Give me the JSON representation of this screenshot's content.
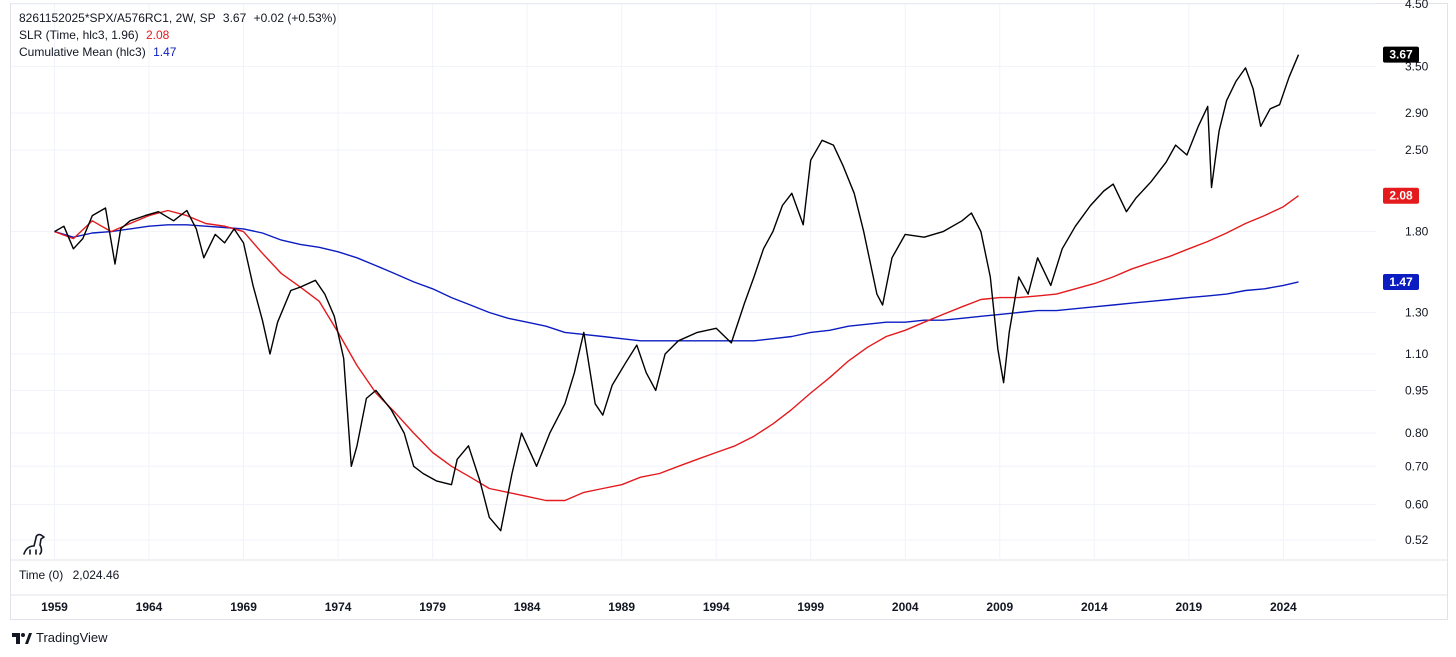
{
  "header": {
    "symbol": "8261152025*SPX/A576RC1, 2W, SP",
    "last": "3.67",
    "change": "+0.02 (+0.53%)"
  },
  "indicators": [
    {
      "label": "SLR (Time, hlc3, 1.96)",
      "value": "2.08",
      "color": "#e41a1c"
    },
    {
      "label": "Cumulative Mean (hlc3)",
      "value": "1.47",
      "color": "#0b1cc1"
    }
  ],
  "time_pane": {
    "label": "Time (0)",
    "value": "2,024.46"
  },
  "footer": {
    "brand": "TradingView"
  },
  "colors": {
    "price": "#000000",
    "slr": "#e41a1c",
    "mean": "#0b1cc1",
    "grid": "#f0f3fa"
  },
  "chart_data": {
    "type": "line",
    "y_scale": "log",
    "ylim": [
      0.48,
      4.5
    ],
    "xlim": [
      1956.7,
      2028.9
    ],
    "y_ticks": [
      "4.50",
      "3.50",
      "2.90",
      "2.50",
      "1.80",
      "1.30",
      "1.10",
      "0.95",
      "0.80",
      "0.70",
      "0.60",
      "0.52"
    ],
    "x_ticks": [
      "1959",
      "1964",
      "1969",
      "1974",
      "1979",
      "1984",
      "1989",
      "1994",
      "1999",
      "2004",
      "2009",
      "2014",
      "2019",
      "2024"
    ],
    "price_labels": [
      {
        "value": 3.67,
        "text": "3.67",
        "color": "#000000"
      },
      {
        "value": 2.08,
        "text": "2.08",
        "color": "#e41a1c"
      },
      {
        "value": 1.47,
        "text": "1.47",
        "color": "#0b1cc1"
      }
    ],
    "series": [
      {
        "name": "8261152025*SPX/A576RC1",
        "color": "#000000",
        "x": [
          1959.0,
          1959.5,
          1960.0,
          1960.5,
          1961.0,
          1961.7,
          1962.2,
          1962.5,
          1963.0,
          1963.8,
          1964.5,
          1965.3,
          1966.0,
          1966.5,
          1966.9,
          1967.5,
          1968.0,
          1968.5,
          1969.0,
          1969.5,
          1970.0,
          1970.4,
          1970.8,
          1971.5,
          1972.0,
          1972.8,
          1973.3,
          1973.8,
          1974.3,
          1974.7,
          1975.0,
          1975.5,
          1976.0,
          1976.8,
          1977.5,
          1978.0,
          1978.5,
          1979.2,
          1980.0,
          1980.3,
          1980.9,
          1981.5,
          1982.0,
          1982.6,
          1983.2,
          1983.7,
          1984.5,
          1985.2,
          1986.0,
          1986.5,
          1987.0,
          1987.6,
          1988.0,
          1988.5,
          1989.2,
          1989.8,
          1990.3,
          1990.8,
          1991.3,
          1992.0,
          1993.0,
          1994.0,
          1994.8,
          1995.5,
          1996.0,
          1996.5,
          1997.0,
          1997.5,
          1998.0,
          1998.6,
          1999.0,
          1999.6,
          2000.2,
          2000.7,
          2001.3,
          2001.8,
          2002.5,
          2002.8,
          2003.3,
          2004.0,
          2005.0,
          2006.0,
          2007.0,
          2007.5,
          2008.0,
          2008.5,
          2008.9,
          2009.2,
          2009.5,
          2010.0,
          2010.5,
          2011.0,
          2011.7,
          2012.3,
          2013.0,
          2013.8,
          2014.5,
          2015.0,
          2015.7,
          2016.2,
          2017.0,
          2017.8,
          2018.3,
          2018.9,
          2019.5,
          2020.0,
          2020.2,
          2020.6,
          2021.0,
          2021.5,
          2022.0,
          2022.4,
          2022.8,
          2023.3,
          2023.8,
          2024.3,
          2024.8
        ],
        "y": [
          1.8,
          1.84,
          1.68,
          1.75,
          1.92,
          1.98,
          1.58,
          1.82,
          1.88,
          1.92,
          1.95,
          1.88,
          1.96,
          1.82,
          1.62,
          1.78,
          1.72,
          1.82,
          1.72,
          1.45,
          1.26,
          1.1,
          1.25,
          1.42,
          1.44,
          1.48,
          1.4,
          1.28,
          1.08,
          0.7,
          0.76,
          0.92,
          0.95,
          0.88,
          0.8,
          0.7,
          0.68,
          0.66,
          0.65,
          0.72,
          0.76,
          0.66,
          0.57,
          0.54,
          0.68,
          0.8,
          0.7,
          0.8,
          0.9,
          1.02,
          1.2,
          0.9,
          0.86,
          0.97,
          1.06,
          1.14,
          1.02,
          0.95,
          1.1,
          1.16,
          1.2,
          1.22,
          1.15,
          1.35,
          1.5,
          1.68,
          1.8,
          2.0,
          2.1,
          1.85,
          2.4,
          2.6,
          2.55,
          2.35,
          2.1,
          1.8,
          1.4,
          1.34,
          1.62,
          1.78,
          1.76,
          1.8,
          1.88,
          1.94,
          1.8,
          1.5,
          1.12,
          0.98,
          1.2,
          1.5,
          1.4,
          1.62,
          1.45,
          1.68,
          1.84,
          2.0,
          2.12,
          2.18,
          1.95,
          2.06,
          2.2,
          2.38,
          2.55,
          2.45,
          2.75,
          2.98,
          2.15,
          2.7,
          3.05,
          3.3,
          3.48,
          3.2,
          2.75,
          2.95,
          3.0,
          3.35,
          3.67
        ]
      },
      {
        "name": "SLR (Time, hlc3, 1.96)",
        "color": "#e41a1c",
        "x": [
          1959.0,
          1960.0,
          1961.0,
          1962.0,
          1963.0,
          1964.0,
          1965.0,
          1966.0,
          1967.0,
          1968.0,
          1969.0,
          1970.0,
          1971.0,
          1972.0,
          1973.0,
          1974.0,
          1975.0,
          1976.0,
          1977.0,
          1978.0,
          1979.0,
          1980.0,
          1981.0,
          1982.0,
          1983.0,
          1984.0,
          1985.0,
          1986.0,
          1987.0,
          1988.0,
          1989.0,
          1990.0,
          1991.0,
          1992.0,
          1993.0,
          1994.0,
          1995.0,
          1996.0,
          1997.0,
          1998.0,
          1999.0,
          2000.0,
          2001.0,
          2002.0,
          2003.0,
          2004.0,
          2005.0,
          2006.0,
          2007.0,
          2008.0,
          2009.0,
          2010.0,
          2011.0,
          2012.0,
          2013.0,
          2014.0,
          2015.0,
          2016.0,
          2017.0,
          2018.0,
          2019.0,
          2020.0,
          2021.0,
          2022.0,
          2023.0,
          2024.0,
          2024.8
        ],
        "y": [
          1.8,
          1.75,
          1.88,
          1.8,
          1.86,
          1.92,
          1.96,
          1.92,
          1.86,
          1.84,
          1.8,
          1.65,
          1.52,
          1.44,
          1.36,
          1.2,
          1.05,
          0.94,
          0.87,
          0.8,
          0.74,
          0.7,
          0.67,
          0.64,
          0.63,
          0.62,
          0.61,
          0.61,
          0.63,
          0.64,
          0.65,
          0.67,
          0.68,
          0.7,
          0.72,
          0.74,
          0.76,
          0.79,
          0.83,
          0.88,
          0.94,
          1.0,
          1.07,
          1.13,
          1.18,
          1.21,
          1.25,
          1.29,
          1.33,
          1.37,
          1.38,
          1.38,
          1.39,
          1.4,
          1.43,
          1.46,
          1.5,
          1.55,
          1.59,
          1.63,
          1.68,
          1.73,
          1.79,
          1.86,
          1.92,
          1.99,
          2.08
        ]
      },
      {
        "name": "Cumulative Mean (hlc3)",
        "color": "#0b1cc1",
        "x": [
          1959.0,
          1960.0,
          1961.0,
          1962.0,
          1963.0,
          1964.0,
          1965.0,
          1966.0,
          1967.0,
          1968.0,
          1969.0,
          1970.0,
          1971.0,
          1972.0,
          1973.0,
          1974.0,
          1975.0,
          1976.0,
          1977.0,
          1978.0,
          1979.0,
          1980.0,
          1981.0,
          1982.0,
          1983.0,
          1984.0,
          1985.0,
          1986.0,
          1987.0,
          1988.0,
          1989.0,
          1990.0,
          1991.0,
          1992.0,
          1993.0,
          1994.0,
          1995.0,
          1996.0,
          1997.0,
          1998.0,
          1999.0,
          2000.0,
          2001.0,
          2002.0,
          2003.0,
          2004.0,
          2005.0,
          2006.0,
          2007.0,
          2008.0,
          2009.0,
          2010.0,
          2011.0,
          2012.0,
          2013.0,
          2014.0,
          2015.0,
          2016.0,
          2017.0,
          2018.0,
          2019.0,
          2020.0,
          2021.0,
          2022.0,
          2023.0,
          2024.0,
          2024.8
        ],
        "y": [
          1.8,
          1.76,
          1.79,
          1.8,
          1.82,
          1.84,
          1.85,
          1.85,
          1.84,
          1.83,
          1.82,
          1.79,
          1.74,
          1.71,
          1.69,
          1.66,
          1.62,
          1.57,
          1.52,
          1.47,
          1.43,
          1.38,
          1.34,
          1.3,
          1.27,
          1.25,
          1.23,
          1.2,
          1.19,
          1.18,
          1.17,
          1.16,
          1.16,
          1.16,
          1.16,
          1.16,
          1.16,
          1.16,
          1.17,
          1.18,
          1.2,
          1.21,
          1.23,
          1.24,
          1.25,
          1.25,
          1.26,
          1.26,
          1.27,
          1.28,
          1.29,
          1.3,
          1.31,
          1.31,
          1.32,
          1.33,
          1.34,
          1.35,
          1.36,
          1.37,
          1.38,
          1.39,
          1.4,
          1.42,
          1.43,
          1.45,
          1.47
        ]
      }
    ]
  }
}
